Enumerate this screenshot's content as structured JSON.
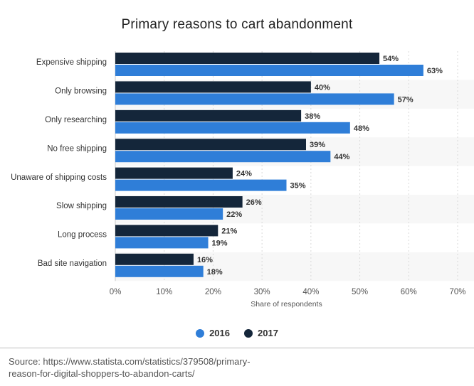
{
  "chart_data": {
    "type": "bar",
    "orientation": "horizontal",
    "title": "Primary reasons to cart abandonment",
    "xlabel": "Share of respondents",
    "ylabel": "",
    "xlim": [
      0,
      70
    ],
    "x_ticks": [
      "0%",
      "10%",
      "20%",
      "30%",
      "40%",
      "50%",
      "60%",
      "70%"
    ],
    "categories": [
      "Expensive shipping",
      "Only browsing",
      "Only researching",
      "No free shipping",
      "Unaware of shipping costs",
      "Slow shipping",
      "Long process",
      "Bad site navigation"
    ],
    "series": [
      {
        "name": "2017",
        "color": "#14263a",
        "values": [
          54,
          40,
          38,
          39,
          24,
          26,
          21,
          16
        ]
      },
      {
        "name": "2016",
        "color": "#2f7ed8",
        "values": [
          63,
          57,
          48,
          44,
          35,
          22,
          19,
          18
        ]
      }
    ],
    "value_suffix": "%",
    "grid": true,
    "legend_position": "bottom-center",
    "legend_order": [
      "2016",
      "2017"
    ]
  },
  "source_text": "Source: https://www.statista.com/statistics/379508/primary-reason-for-digital-shoppers-to-abandon-carts/"
}
